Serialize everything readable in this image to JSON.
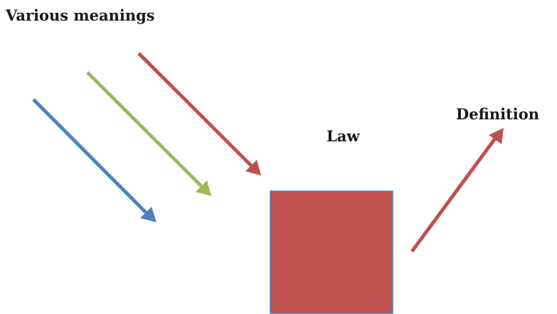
{
  "title": "Various meanings",
  "box_label": "Law",
  "output_label": "Definition",
  "colors": {
    "box_fill": "#c0504d",
    "box_border": "#4f81bd",
    "arrow_blue": "#4f81bd",
    "arrow_green": "#9bbb59",
    "arrow_red": "#c0504d",
    "output_arrow": "#c0504d",
    "text": "#1a1a1a"
  },
  "arrows": [
    {
      "name": "blue-input-arrow",
      "color_key": "arrow_blue"
    },
    {
      "name": "green-input-arrow",
      "color_key": "arrow_green"
    },
    {
      "name": "red-input-arrow",
      "color_key": "arrow_red"
    },
    {
      "name": "output-arrow",
      "color_key": "output_arrow"
    }
  ]
}
